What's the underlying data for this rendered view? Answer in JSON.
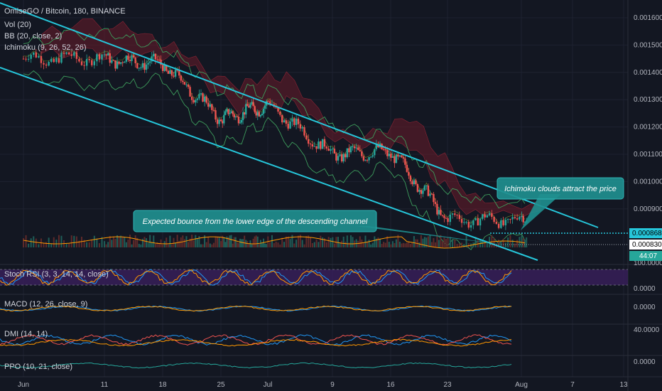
{
  "header": {
    "symbol_line": "OmiseGO / Bitcoin, 180, BINANCE",
    "indicators": [
      "Vol (20)",
      "BB (20, close, 2)",
      "Ichimoku (9, 26, 52, 26)"
    ]
  },
  "panes": {
    "stoch": "Stoch RSI (3, 3, 14, 14, close)",
    "macd": "MACD (12, 26, close, 9)",
    "dmi": "DMI (14, 14)",
    "ppo": "PPO (10, 21, close)"
  },
  "annotations": {
    "lower_edge": "Expected bounce from the lower edge of the descending channel",
    "clouds": "Ichimoku clouds attract the price"
  },
  "colors": {
    "background": "#131722",
    "channel": "#26c6da",
    "up_candle": "#26a69a",
    "down_candle": "#ef5350",
    "callout_fill": "#1f8f8f",
    "stoch_band": "#3a1f5c",
    "bb": "#3d9c5c",
    "cloud": "#6a1b2a"
  },
  "chart_data": [
    {
      "type": "line",
      "title": "OmiseGO / Bitcoin, 180, BINANCE",
      "x_ticks": [
        "Jun",
        "11",
        "18",
        "25",
        "Jul",
        "9",
        "16",
        "23",
        "Aug",
        "7",
        "13"
      ],
      "y_ticks": [
        "0.001600",
        "0.001500",
        "0.001400",
        "0.001300",
        "0.001200",
        "0.001100",
        "0.001000",
        "0.000900"
      ],
      "price_labels": [
        "0.000868",
        "0.000830",
        "44:07"
      ],
      "series": [
        {
          "x": [
            "Jun",
            "11",
            "18",
            "25",
            "Jul",
            "9",
            "16",
            "23"
          ],
          "values": [
            0.00145,
            0.00145,
            0.00143,
            0.00123,
            0.00128,
            0.0011,
            0.00111,
            0.00086
          ]
        }
      ],
      "channel_lines": "descending channel (two parallel trend lines)"
    },
    {
      "type": "line",
      "title": "Stoch RSI (3, 3, 14, 14, close)",
      "y_ticks": [
        "100.0000",
        "0.0000"
      ]
    },
    {
      "type": "line",
      "title": "MACD (12, 26, close, 9)",
      "y_ticks": [
        "0.0000"
      ]
    },
    {
      "type": "line",
      "title": "DMI (14, 14)",
      "y_ticks": [
        "40.0000"
      ]
    },
    {
      "type": "line",
      "title": "PPO (10, 21, close)",
      "y_ticks": [
        "0.0000"
      ]
    }
  ]
}
